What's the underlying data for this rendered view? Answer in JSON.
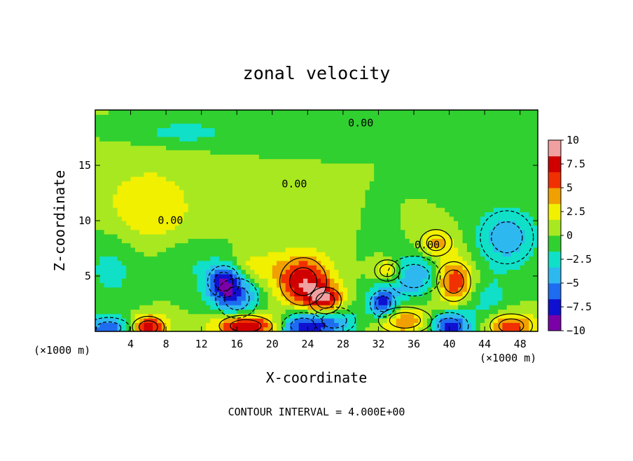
{
  "chart_data": {
    "type": "heatmap",
    "title": "zonal velocity",
    "xlabel": "X-coordinate",
    "ylabel": "Z-coordinate",
    "x_unit_label_left": "(×1000 m)",
    "x_unit_label_right": "(×1000 m)",
    "xlim": [
      0,
      50
    ],
    "ylim": [
      0,
      20
    ],
    "x_ticks": [
      4,
      8,
      12,
      16,
      20,
      24,
      28,
      32,
      36,
      40,
      44,
      48
    ],
    "y_ticks": [
      5,
      10,
      15
    ],
    "colorbar": {
      "min": -10,
      "max": 10,
      "ticks": [
        10,
        7.5,
        5,
        2.5,
        0,
        -2.5,
        -5,
        -7.5,
        -10
      ],
      "tick_labels": [
        "10",
        "7.5",
        "5",
        "2.5",
        "0",
        "−2.5",
        "−5",
        "−7.5",
        "−10"
      ],
      "colors": [
        "#7a00a8",
        "#1010d0",
        "#1e6cf0",
        "#2eb8f0",
        "#10e0c8",
        "#30d030",
        "#a8e820",
        "#f0f000",
        "#f0a000",
        "#f03000",
        "#d00000",
        "#f0a0a0"
      ]
    },
    "background_value": 0,
    "anomalies": [
      {
        "x": 6,
        "z": 11,
        "value": 3,
        "sx": 4,
        "sz": 3
      },
      {
        "x": 2,
        "z": 6,
        "value": -2.5,
        "sx": 2.5,
        "sz": 2.5
      },
      {
        "x": 10,
        "z": 6.5,
        "value": -2,
        "sx": 2.5,
        "sz": 1.5
      },
      {
        "x": 14.5,
        "z": 4.5,
        "value": -7,
        "sx": 1.5,
        "sz": 1.2
      },
      {
        "x": 16,
        "z": 3,
        "value": -5,
        "sx": 2,
        "sz": 1.5
      },
      {
        "x": 18,
        "z": 5.8,
        "value": 3,
        "sx": 2,
        "sz": 1
      },
      {
        "x": 23.5,
        "z": 4.5,
        "value": 8,
        "sx": 2.2,
        "sz": 1.8
      },
      {
        "x": 26,
        "z": 2.8,
        "value": 7,
        "sx": 1.5,
        "sz": 1
      },
      {
        "x": 17,
        "z": 0.5,
        "value": 9.5,
        "sx": 2.5,
        "sz": 0.8
      },
      {
        "x": 6,
        "z": 0.4,
        "value": 8,
        "sx": 1.5,
        "sz": 0.8
      },
      {
        "x": 1.5,
        "z": 0.3,
        "value": -6,
        "sx": 2,
        "sz": 0.8
      },
      {
        "x": 23.5,
        "z": 0.5,
        "value": -8,
        "sx": 2,
        "sz": 1
      },
      {
        "x": 27,
        "z": 1,
        "value": -5,
        "sx": 2,
        "sz": 1
      },
      {
        "x": 32.5,
        "z": 2.5,
        "value": -7.5,
        "sx": 1.2,
        "sz": 1
      },
      {
        "x": 36,
        "z": 5,
        "value": -5,
        "sx": 2.5,
        "sz": 1.5
      },
      {
        "x": 40.5,
        "z": 4.5,
        "value": 7.5,
        "sx": 1.6,
        "sz": 1.5
      },
      {
        "x": 40,
        "z": 0.5,
        "value": -8,
        "sx": 1.8,
        "sz": 1
      },
      {
        "x": 35,
        "z": 1,
        "value": 5,
        "sx": 2.5,
        "sz": 1
      },
      {
        "x": 46.5,
        "z": 8.5,
        "value": -4.5,
        "sx": 2.5,
        "sz": 2
      },
      {
        "x": 44,
        "z": 3,
        "value": -2.5,
        "sx": 2,
        "sz": 1.5
      },
      {
        "x": 47,
        "z": 0.5,
        "value": 6,
        "sx": 2,
        "sz": 0.9
      },
      {
        "x": 33,
        "z": 5.5,
        "value": 5,
        "sx": 1.2,
        "sz": 0.8
      },
      {
        "x": 38.5,
        "z": 8,
        "value": 4,
        "sx": 1.5,
        "sz": 1
      },
      {
        "x": 10,
        "z": 18,
        "value": -2.5,
        "sx": 4,
        "sz": 0.8
      }
    ],
    "contour_interval_label": "CONTOUR INTERVAL =  4.000E+00",
    "contour_labels": [
      "0.00",
      "0.00",
      "0.00",
      "0.00"
    ]
  }
}
